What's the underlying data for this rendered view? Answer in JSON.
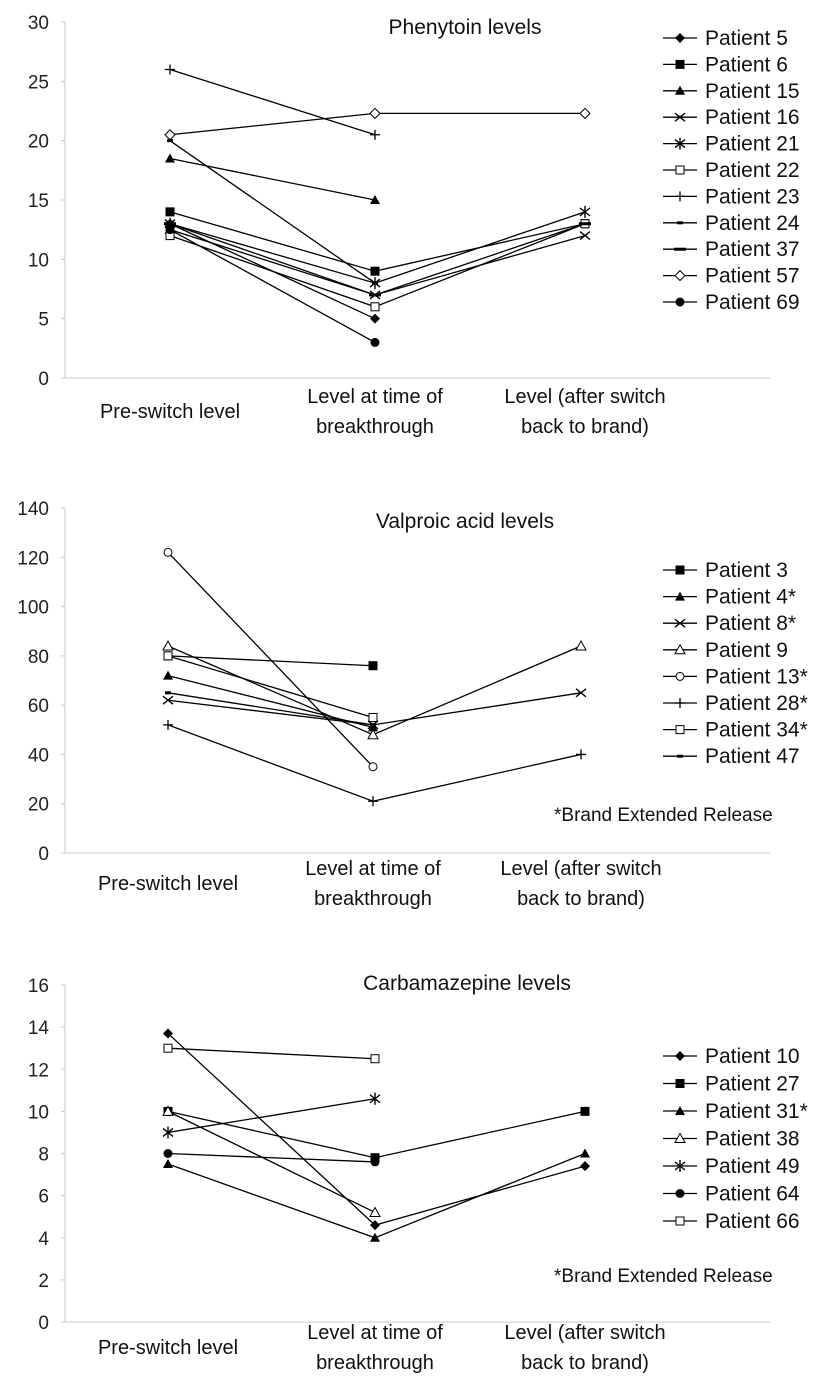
{
  "chart_data": [
    {
      "type": "line",
      "title": "Phenytoin levels",
      "categories": [
        "Pre-switch level",
        "Level at time of breakthrough",
        "Level (after switch back to brand)"
      ],
      "ylim": [
        0,
        30
      ],
      "yticks": [
        0,
        5,
        10,
        15,
        20,
        25,
        30
      ],
      "legend": "right",
      "note": "",
      "series": [
        {
          "name": "Patient 5",
          "marker": "diamond",
          "values": [
            13,
            5,
            null
          ]
        },
        {
          "name": "Patient 6",
          "marker": "square",
          "values": [
            14,
            9,
            13
          ]
        },
        {
          "name": "Patient 15",
          "marker": "triangle",
          "values": [
            18.5,
            15,
            null
          ]
        },
        {
          "name": "Patient 16",
          "marker": "x",
          "values": [
            12.5,
            7,
            12
          ]
        },
        {
          "name": "Patient 21",
          "marker": "star",
          "values": [
            13,
            8,
            14
          ]
        },
        {
          "name": "Patient 22",
          "marker": "square-open",
          "values": [
            12,
            6,
            13
          ]
        },
        {
          "name": "Patient 23",
          "marker": "plus",
          "values": [
            26,
            20.5,
            null
          ]
        },
        {
          "name": "Patient 24",
          "marker": "dash",
          "values": [
            20,
            8,
            null
          ]
        },
        {
          "name": "Patient 37",
          "marker": "longdash",
          "values": [
            13,
            7,
            13
          ]
        },
        {
          "name": "Patient 57",
          "marker": "diamond-open",
          "values": [
            20.5,
            22.3,
            22.3
          ]
        },
        {
          "name": "Patient 69",
          "marker": "circle",
          "values": [
            12.5,
            3,
            null
          ]
        }
      ]
    },
    {
      "type": "line",
      "title": "Valproic acid levels",
      "categories": [
        "Pre-switch level",
        "Level at time of breakthrough",
        "Level (after switch back to brand)"
      ],
      "ylim": [
        0,
        140
      ],
      "yticks": [
        0,
        20,
        40,
        60,
        80,
        100,
        120,
        140
      ],
      "legend": "right",
      "note": "*Brand Extended Release",
      "series": [
        {
          "name": "Patient 3",
          "marker": "square",
          "values": [
            80,
            76,
            null
          ]
        },
        {
          "name": "Patient 4*",
          "marker": "triangle",
          "values": [
            72,
            51,
            null
          ]
        },
        {
          "name": "Patient 8*",
          "marker": "x",
          "values": [
            62,
            52,
            65
          ]
        },
        {
          "name": "Patient 9",
          "marker": "triangle-open",
          "values": [
            84,
            48,
            84
          ]
        },
        {
          "name": "Patient 13*",
          "marker": "circle-open",
          "values": [
            122,
            35,
            null
          ]
        },
        {
          "name": "Patient 28*",
          "marker": "plus",
          "values": [
            52,
            21,
            40
          ]
        },
        {
          "name": "Patient 34*",
          "marker": "square-open",
          "values": [
            80,
            55,
            null
          ]
        },
        {
          "name": "Patient 47",
          "marker": "dash",
          "values": [
            65,
            52,
            null
          ]
        }
      ]
    },
    {
      "type": "line",
      "title": "Carbamazepine levels",
      "categories": [
        "Pre-switch level",
        "Level at time of breakthrough",
        "Level (after switch back to brand)"
      ],
      "ylim": [
        0,
        16
      ],
      "yticks": [
        0,
        2,
        4,
        6,
        8,
        10,
        12,
        14,
        16
      ],
      "legend": "right",
      "note": "*Brand Extended Release",
      "series": [
        {
          "name": "Patient 10",
          "marker": "diamond",
          "values": [
            13.7,
            4.6,
            7.4
          ]
        },
        {
          "name": "Patient 27",
          "marker": "square",
          "values": [
            10,
            7.8,
            10
          ]
        },
        {
          "name": "Patient 31*",
          "marker": "triangle",
          "values": [
            7.5,
            4,
            8
          ]
        },
        {
          "name": "Patient 38",
          "marker": "triangle-open",
          "values": [
            10,
            5.2,
            null
          ]
        },
        {
          "name": "Patient 49",
          "marker": "star",
          "values": [
            9,
            10.6,
            null
          ]
        },
        {
          "name": "Patient 64",
          "marker": "circle",
          "values": [
            8,
            7.6,
            null
          ]
        },
        {
          "name": "Patient 66",
          "marker": "square-open",
          "values": [
            13,
            12.5,
            null
          ]
        }
      ]
    }
  ]
}
